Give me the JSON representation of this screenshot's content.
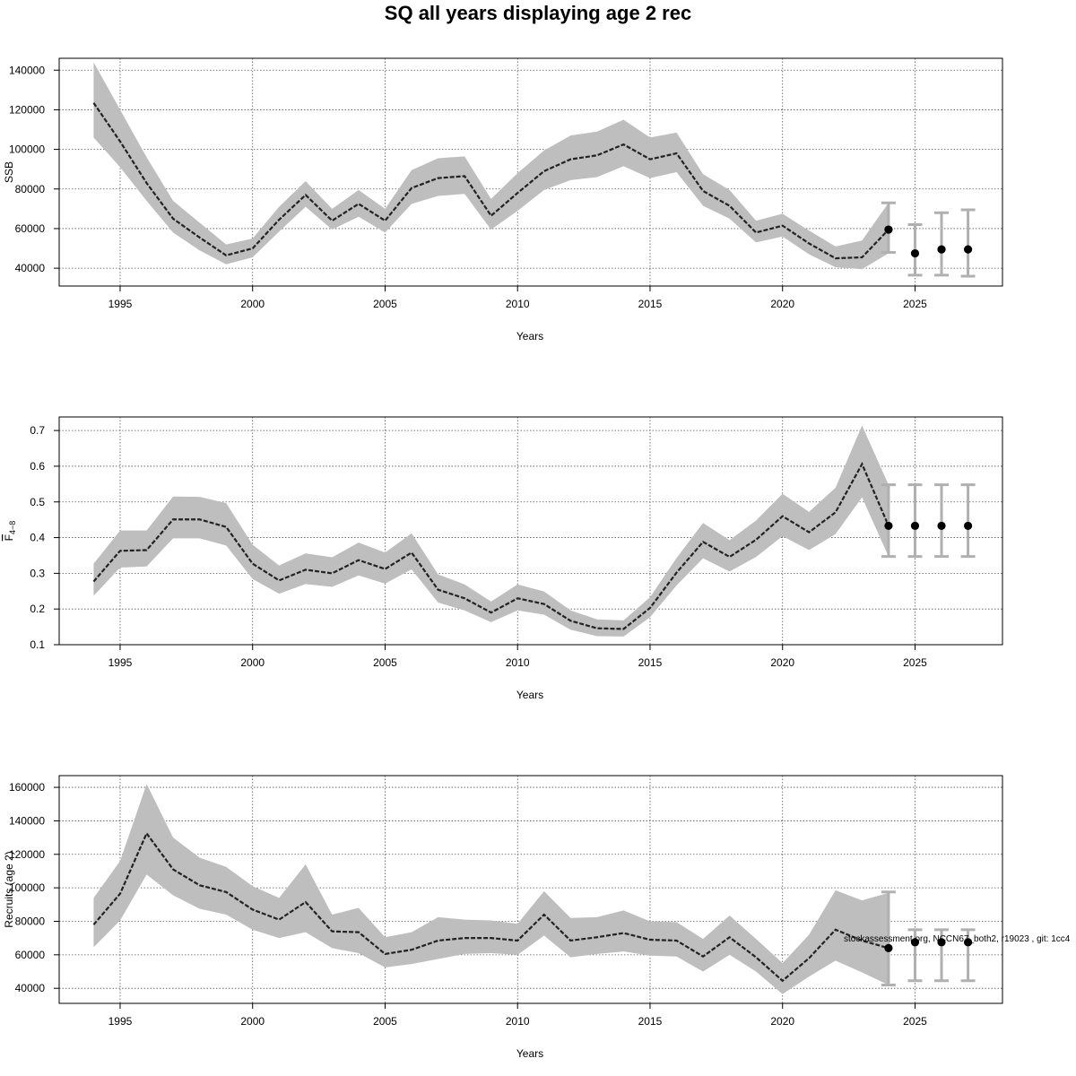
{
  "title": "SQ all years displaying age 2 rec",
  "footnote": "stockassessment.org, NCCN67_both2, r19023 , git: 1cc4",
  "colors": {
    "band": "#bebebe",
    "line": "#222222",
    "grid": "#555555",
    "errorbar": "#b0b0b0",
    "point": "#000000"
  },
  "chart_data": [
    {
      "type": "line",
      "ylabel": "SSB",
      "xlabel": "Years",
      "xlim": [
        1992.7,
        2028.3
      ],
      "ylim": [
        31000,
        146000
      ],
      "xticks": [
        1995,
        2000,
        2005,
        2010,
        2015,
        2020,
        2025
      ],
      "yticks": [
        40000,
        60000,
        80000,
        100000,
        120000,
        140000
      ],
      "ytick_labels": [
        "40000",
        "60000",
        "80000",
        "100000",
        "120000",
        "140000"
      ],
      "grid": true,
      "years": [
        1994,
        1995,
        1996,
        1997,
        1998,
        1999,
        2000,
        2001,
        2002,
        2003,
        2004,
        2005,
        2006,
        2007,
        2008,
        2009,
        2010,
        2011,
        2012,
        2013,
        2014,
        2015,
        2016,
        2017,
        2018,
        2019,
        2020,
        2021,
        2022,
        2023,
        2024
      ],
      "estimate": [
        123500,
        104000,
        83000,
        65000,
        55500,
        46500,
        50000,
        64500,
        77000,
        64000,
        72500,
        64000,
        80500,
        85500,
        86500,
        66500,
        78000,
        89000,
        95000,
        97000,
        102500,
        95000,
        98000,
        79000,
        71500,
        58000,
        61500,
        52500,
        45000,
        45500,
        59500
      ],
      "lower": [
        106000,
        91000,
        74000,
        58000,
        49000,
        42000,
        45500,
        58500,
        71000,
        59500,
        66000,
        58000,
        72500,
        76500,
        77500,
        59500,
        69000,
        79500,
        84500,
        86000,
        91500,
        85500,
        88500,
        71500,
        65000,
        53000,
        56000,
        47000,
        40500,
        39500,
        47500
      ],
      "upper": [
        144000,
        120000,
        96000,
        74000,
        63000,
        52000,
        55000,
        71000,
        84000,
        70000,
        79500,
        70000,
        89500,
        95500,
        96500,
        75000,
        88000,
        99500,
        107000,
        109000,
        115000,
        106000,
        108500,
        87500,
        79500,
        64000,
        67500,
        59000,
        51000,
        54000,
        73000
      ],
      "forecast": {
        "years": [
          2024,
          2025,
          2026,
          2027
        ],
        "estimate": [
          59500,
          47500,
          49500,
          49500
        ],
        "lower": [
          48000,
          36500,
          36500,
          36000
        ],
        "upper": [
          73000,
          62000,
          68000,
          69500
        ]
      }
    },
    {
      "type": "line",
      "ylabel": "F4-8",
      "ylabel_base": "F",
      "ylabel_sub": "4−8",
      "xlabel": "Years",
      "xlim": [
        1992.7,
        2028.3
      ],
      "ylim": [
        0.1,
        0.738
      ],
      "xticks": [
        1995,
        2000,
        2005,
        2010,
        2015,
        2020,
        2025
      ],
      "yticks": [
        0.1,
        0.2,
        0.3,
        0.4,
        0.5,
        0.6,
        0.7
      ],
      "ytick_labels": [
        "0.1",
        "0.2",
        "0.3",
        "0.4",
        "0.5",
        "0.6",
        "0.7"
      ],
      "grid": true,
      "years": [
        1994,
        1995,
        1996,
        1997,
        1998,
        1999,
        2000,
        2001,
        2002,
        2003,
        2004,
        2005,
        2006,
        2007,
        2008,
        2009,
        2010,
        2011,
        2012,
        2013,
        2014,
        2015,
        2016,
        2017,
        2018,
        2019,
        2020,
        2021,
        2022,
        2023,
        2024
      ],
      "estimate": [
        0.277,
        0.363,
        0.365,
        0.451,
        0.451,
        0.43,
        0.327,
        0.28,
        0.31,
        0.3,
        0.337,
        0.312,
        0.358,
        0.254,
        0.23,
        0.19,
        0.23,
        0.214,
        0.167,
        0.146,
        0.144,
        0.203,
        0.302,
        0.388,
        0.346,
        0.394,
        0.46,
        0.415,
        0.471,
        0.606,
        0.433
      ],
      "lower": [
        0.237,
        0.316,
        0.319,
        0.398,
        0.398,
        0.378,
        0.284,
        0.243,
        0.27,
        0.262,
        0.294,
        0.271,
        0.311,
        0.218,
        0.196,
        0.163,
        0.196,
        0.184,
        0.142,
        0.124,
        0.123,
        0.177,
        0.266,
        0.342,
        0.305,
        0.346,
        0.404,
        0.365,
        0.41,
        0.513,
        0.347
      ],
      "upper": [
        0.327,
        0.42,
        0.42,
        0.515,
        0.514,
        0.497,
        0.38,
        0.322,
        0.356,
        0.345,
        0.386,
        0.358,
        0.412,
        0.297,
        0.269,
        0.221,
        0.269,
        0.249,
        0.196,
        0.171,
        0.168,
        0.233,
        0.343,
        0.441,
        0.393,
        0.448,
        0.523,
        0.472,
        0.54,
        0.714,
        0.548
      ],
      "forecast": {
        "years": [
          2024,
          2025,
          2026,
          2027
        ],
        "estimate": [
          0.433,
          0.433,
          0.433,
          0.433
        ],
        "lower": [
          0.347,
          0.347,
          0.347,
          0.347
        ],
        "upper": [
          0.548,
          0.548,
          0.548,
          0.548
        ]
      }
    },
    {
      "type": "line",
      "ylabel": "Recruits (age 2)",
      "xlabel": "Years",
      "xlim": [
        1992.7,
        2028.3
      ],
      "ylim": [
        31000,
        167000
      ],
      "xticks": [
        1995,
        2000,
        2005,
        2010,
        2015,
        2020,
        2025
      ],
      "yticks": [
        40000,
        60000,
        80000,
        100000,
        120000,
        140000,
        160000
      ],
      "ytick_labels": [
        "40000",
        "60000",
        "80000",
        "100000",
        "120000",
        "140000",
        "160000"
      ],
      "grid": true,
      "years": [
        1994,
        1995,
        1996,
        1997,
        1998,
        1999,
        2000,
        2001,
        2002,
        2003,
        2004,
        2005,
        2006,
        2007,
        2008,
        2009,
        2010,
        2011,
        2012,
        2013,
        2014,
        2015,
        2016,
        2017,
        2018,
        2019,
        2020,
        2021,
        2022,
        2023,
        2024
      ],
      "estimate": [
        78000,
        96500,
        132500,
        111000,
        101500,
        97500,
        87000,
        81000,
        91500,
        74000,
        73500,
        60500,
        63000,
        68500,
        70000,
        70000,
        68500,
        84000,
        68500,
        70500,
        73000,
        69000,
        68500,
        59000,
        70500,
        58500,
        44500,
        58000,
        75000,
        68500,
        64000
      ],
      "lower": [
        64500,
        80500,
        108000,
        95500,
        87500,
        84000,
        75000,
        70000,
        73500,
        64000,
        61000,
        52500,
        54500,
        57500,
        60500,
        61000,
        60000,
        71500,
        58500,
        60500,
        62000,
        59500,
        59000,
        50000,
        60000,
        50000,
        36500,
        47000,
        56500,
        49500,
        42000
      ],
      "upper": [
        94000,
        116000,
        162000,
        130000,
        118000,
        112500,
        101000,
        94000,
        114000,
        84000,
        88000,
        70500,
        73500,
        82500,
        81000,
        80500,
        78500,
        98000,
        82000,
        82500,
        86500,
        80000,
        79500,
        69500,
        83500,
        69500,
        55000,
        72000,
        98500,
        92500,
        97000
      ],
      "forecast": {
        "years": [
          2024,
          2025,
          2026,
          2027
        ],
        "estimate": [
          64000,
          67500,
          67500,
          67500
        ],
        "lower": [
          42000,
          44500,
          44500,
          44500
        ],
        "upper": [
          97500,
          75000,
          75000,
          75000
        ]
      }
    }
  ]
}
